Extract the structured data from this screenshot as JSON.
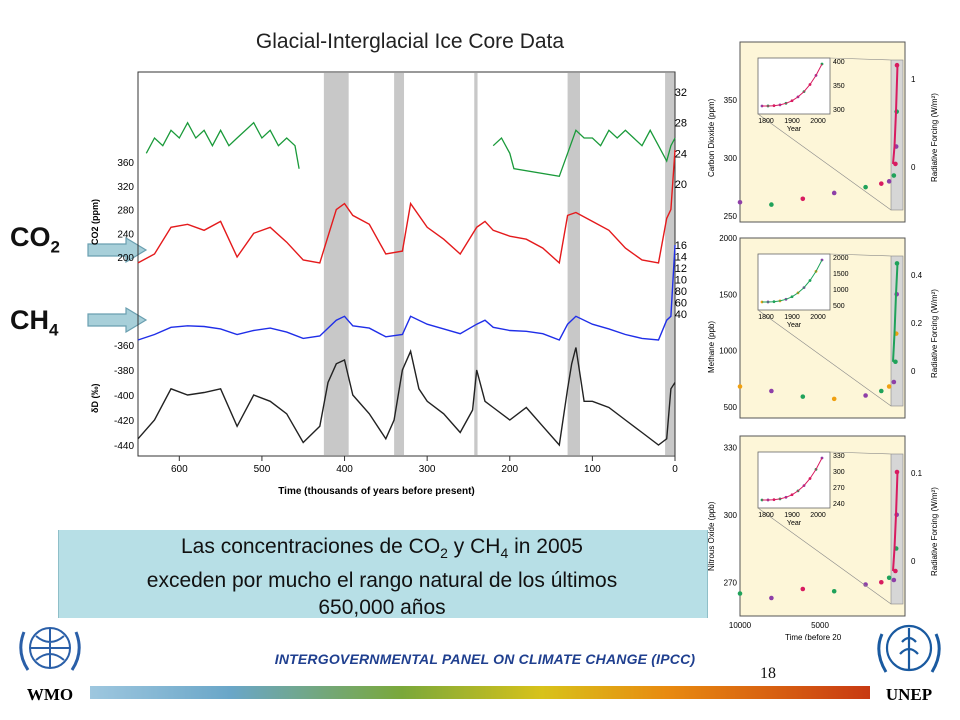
{
  "title": "Glacial-Interglacial Ice Core Data",
  "labels": {
    "co2": "CO",
    "co2_sub": "2",
    "ch4": "CH",
    "ch4_sub": "4"
  },
  "caption": {
    "line1_a": "Las concentraciones de CO",
    "line1_sub1": "2",
    "line1_b": " y CH",
    "line1_sub2": "4",
    "line1_c": " in 2005",
    "line2": "exceden por mucho el rango natural de los últimos",
    "line3": "650,000 años"
  },
  "footer": {
    "text": "INTERGOVERNMENTAL PANEL ON CLIMATE CHANGE (IPCC)",
    "page": "18"
  },
  "logos": {
    "left": "WMO",
    "right": "UNEP"
  },
  "colors": {
    "co2": "#e41a1c",
    "ch4": "#1f2ee8",
    "dD": "#222222",
    "temp": "#1a9a3a",
    "interglacial": "#c8c8c8",
    "inset_bg": "#fdf6d8",
    "co2_dots": "#d81b60",
    "green_dots": "#1fa25a",
    "purple_dots": "#8e3fa8",
    "orange_dots": "#f0a010"
  },
  "chart_data": [
    {
      "type": "line",
      "title": "Glacial-Interglacial Ice Core Data",
      "xlabel": "Time (thousands of years before present)",
      "xlim": [
        650,
        0
      ],
      "x_ticks": [
        "600",
        "500",
        "400",
        "300",
        "200",
        "100",
        "0"
      ],
      "interglacial_bands_kyr": [
        [
          425,
          395
        ],
        [
          340,
          328
        ],
        [
          243,
          239
        ],
        [
          130,
          115
        ],
        [
          12,
          0
        ]
      ],
      "axes": {
        "co2": {
          "label": "CO2 (ppm)",
          "ticks": [
            "360",
            "320",
            "280",
            "240",
            "200"
          ]
        },
        "ch4": {
          "ticks": [
            "1600",
            "1400",
            "1200",
            "1000",
            "800",
            "600",
            "400"
          ],
          "tick_labels_shown": [
            "16",
            "14",
            "12",
            "10",
            "80",
            "60",
            "40"
          ]
        },
        "dD": {
          "label": "δD (‰)",
          "ticks": [
            "-360",
            "-380",
            "-400",
            "-420",
            "-440"
          ]
        },
        "temp_right": {
          "ticks": [
            "32",
            "28",
            "24",
            "20"
          ]
        }
      },
      "series": [
        {
          "name": "CO2",
          "axis": "co2",
          "x": [
            650,
            630,
            610,
            590,
            570,
            550,
            530,
            510,
            490,
            470,
            450,
            430,
            410,
            400,
            390,
            370,
            350,
            330,
            320,
            300,
            280,
            260,
            240,
            230,
            220,
            200,
            180,
            160,
            140,
            130,
            120,
            100,
            80,
            60,
            40,
            20,
            10,
            5,
            0
          ],
          "values": [
            190,
            205,
            250,
            255,
            245,
            260,
            200,
            240,
            250,
            225,
            195,
            190,
            280,
            290,
            270,
            255,
            205,
            210,
            290,
            250,
            230,
            205,
            250,
            260,
            245,
            235,
            230,
            215,
            190,
            270,
            275,
            260,
            245,
            215,
            195,
            190,
            265,
            280,
            380
          ]
        },
        {
          "name": "CH4",
          "axis": "ch4",
          "x": [
            650,
            630,
            610,
            590,
            570,
            550,
            530,
            510,
            490,
            470,
            450,
            430,
            410,
            400,
            390,
            370,
            350,
            330,
            320,
            300,
            280,
            260,
            240,
            230,
            220,
            200,
            180,
            160,
            140,
            130,
            120,
            100,
            80,
            60,
            40,
            20,
            10,
            5,
            0
          ],
          "values": [
            400,
            470,
            560,
            580,
            570,
            540,
            470,
            520,
            550,
            500,
            420,
            450,
            650,
            700,
            580,
            550,
            440,
            470,
            700,
            600,
            540,
            480,
            600,
            650,
            560,
            520,
            510,
            480,
            400,
            600,
            700,
            600,
            540,
            470,
            420,
            400,
            650,
            700,
            1750
          ]
        },
        {
          "name": "δD",
          "axis": "dD",
          "x": [
            650,
            630,
            610,
            590,
            570,
            550,
            530,
            510,
            490,
            470,
            450,
            430,
            420,
            410,
            400,
            390,
            370,
            350,
            340,
            330,
            320,
            310,
            300,
            280,
            260,
            245,
            240,
            230,
            220,
            200,
            180,
            160,
            140,
            130,
            125,
            120,
            110,
            100,
            80,
            60,
            40,
            20,
            10,
            5,
            0
          ],
          "values": [
            -435,
            -420,
            -395,
            -400,
            -398,
            -395,
            -425,
            -400,
            -405,
            -415,
            -438,
            -425,
            -390,
            -375,
            -372,
            -400,
            -415,
            -435,
            -420,
            -380,
            -365,
            -395,
            -405,
            -415,
            -430,
            -412,
            -380,
            -405,
            -410,
            -420,
            -410,
            -425,
            -440,
            -395,
            -375,
            -362,
            -405,
            -405,
            -410,
            -420,
            -430,
            -440,
            -435,
            -395,
            -390
          ]
        },
        {
          "name": "Temperature proxy",
          "axis": "temp_right",
          "x": [
            640,
            630,
            620,
            610,
            600,
            590,
            580,
            570,
            560,
            550,
            540,
            530,
            510,
            500,
            490,
            480,
            470,
            460,
            455,
            220,
            210,
            200,
            195,
            140,
            130,
            120,
            110,
            100,
            90,
            80,
            70,
            60,
            50,
            40,
            30,
            20,
            10,
            5,
            0
          ],
          "values": [
            24,
            26,
            25,
            27,
            26,
            28,
            26,
            27,
            25,
            27,
            25,
            26,
            28,
            26,
            27,
            25,
            26,
            25,
            22,
            25,
            26,
            24,
            22,
            21,
            24,
            27,
            26,
            26,
            25,
            27,
            26,
            27,
            26,
            25,
            27,
            25,
            23,
            25,
            26
          ]
        }
      ]
    },
    {
      "type": "scatter",
      "ylabel": "Carbon Dioxide (ppm)",
      "y2label": "Radiative Forcing (W/m²)",
      "y_ticks": [
        "350",
        "300",
        "250"
      ],
      "y2_ticks": [
        "1",
        "0"
      ],
      "inset": {
        "x_ticks": [
          "1800",
          "1900",
          "2000"
        ],
        "y_ticks": [
          "400",
          "350",
          "300"
        ],
        "xlabel": "Year"
      },
      "x": [
        10000,
        8000,
        6000,
        4000,
        2000,
        1000,
        500,
        200,
        100,
        50,
        20,
        0
      ],
      "values": [
        262,
        260,
        265,
        270,
        275,
        278,
        280,
        285,
        295,
        310,
        340,
        380
      ]
    },
    {
      "type": "scatter",
      "ylabel": "Methane (ppb)",
      "y2label": "Radiative Forcing (W/m²)",
      "y_ticks": [
        "2000",
        "1500",
        "1000",
        "500"
      ],
      "y2_ticks": [
        "0.4",
        "0.2",
        "0"
      ],
      "inset": {
        "x_ticks": [
          "1800",
          "1900",
          "2000"
        ],
        "y_ticks": [
          "2000",
          "1500",
          "1000",
          "500"
        ],
        "xlabel": "Year"
      },
      "x": [
        10000,
        8000,
        6000,
        4000,
        2000,
        1000,
        500,
        200,
        100,
        50,
        20,
        0
      ],
      "values": [
        680,
        640,
        590,
        570,
        600,
        640,
        680,
        720,
        900,
        1150,
        1500,
        1774
      ]
    },
    {
      "type": "scatter",
      "ylabel": "Nitrous Oxide (ppb)",
      "y2label": "Radiative Forcing (W/m²)",
      "xlabel": "Time (before 20",
      "x_ticks": [
        "10000",
        "5000"
      ],
      "y_ticks": [
        "330",
        "300",
        "270"
      ],
      "y2_ticks": [
        "0.1",
        "0"
      ],
      "inset": {
        "x_ticks": [
          "1800",
          "1900",
          "2000"
        ],
        "y_ticks": [
          "330",
          "300",
          "270",
          "240"
        ],
        "xlabel": "Year"
      },
      "x": [
        10000,
        8000,
        6000,
        4000,
        2000,
        1000,
        500,
        200,
        100,
        50,
        20,
        0
      ],
      "values": [
        265,
        263,
        267,
        266,
        269,
        270,
        272,
        271,
        275,
        285,
        300,
        319
      ]
    }
  ]
}
